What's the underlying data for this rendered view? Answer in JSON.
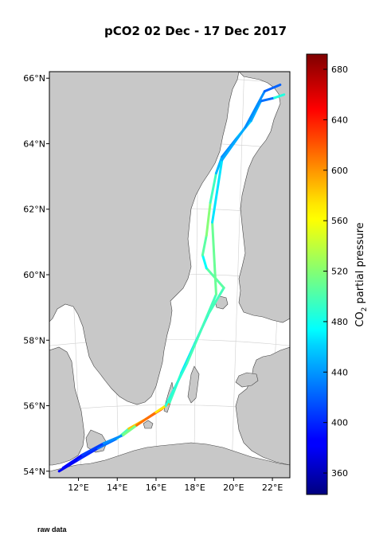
{
  "title": "pCO2 02 Dec - 17 Dec 2017",
  "footer_label": "raw data",
  "map": {
    "lon_range": [
      10.5,
      22.9
    ],
    "lat_range": [
      53.8,
      66.2
    ],
    "lat_ticks": [
      {
        "value": 54,
        "label": "54°N"
      },
      {
        "value": 56,
        "label": "56°N"
      },
      {
        "value": 58,
        "label": "58°N"
      },
      {
        "value": 60,
        "label": "60°N"
      },
      {
        "value": 62,
        "label": "62°N"
      },
      {
        "value": 64,
        "label": "64°N"
      },
      {
        "value": 66,
        "label": "66°N"
      }
    ],
    "lon_ticks": [
      {
        "value": 12,
        "label": "12°E"
      },
      {
        "value": 14,
        "label": "14°E"
      },
      {
        "value": 16,
        "label": "16°E"
      },
      {
        "value": 18,
        "label": "18°E"
      },
      {
        "value": 20,
        "label": "20°E"
      },
      {
        "value": 22,
        "label": "22°E"
      }
    ],
    "land_color": "#c8c8c8",
    "sea_color": "#ffffff",
    "track": [
      {
        "lon": 11.0,
        "lat": 54.0,
        "pco2": 375
      },
      {
        "lon": 12.0,
        "lat": 54.35,
        "pco2": 390
      },
      {
        "lon": 13.0,
        "lat": 54.7,
        "pco2": 410
      },
      {
        "lon": 14.0,
        "lat": 55.0,
        "pco2": 440
      },
      {
        "lon": 14.6,
        "lat": 55.3,
        "pco2": 560
      },
      {
        "lon": 15.5,
        "lat": 55.6,
        "pco2": 600
      },
      {
        "lon": 16.3,
        "lat": 55.9,
        "pco2": 670
      },
      {
        "lon": 16.7,
        "lat": 56.1,
        "pco2": 520
      },
      {
        "lon": 17.3,
        "lat": 57.0,
        "pco2": 470
      },
      {
        "lon": 18.0,
        "lat": 57.9,
        "pco2": 460
      },
      {
        "lon": 18.7,
        "lat": 58.8,
        "pco2": 455
      },
      {
        "lon": 19.5,
        "lat": 59.6,
        "pco2": 540
      },
      {
        "lon": 18.6,
        "lat": 60.2,
        "pco2": 470
      },
      {
        "lon": 18.4,
        "lat": 60.6,
        "pco2": 480
      },
      {
        "lon": 18.6,
        "lat": 61.2,
        "pco2": 530
      },
      {
        "lon": 18.8,
        "lat": 62.2,
        "pco2": 510
      },
      {
        "lon": 19.1,
        "lat": 63.1,
        "pco2": 480
      },
      {
        "lon": 19.4,
        "lat": 63.6,
        "pco2": 420
      },
      {
        "lon": 20.2,
        "lat": 64.2,
        "pco2": 450
      },
      {
        "lon": 20.9,
        "lat": 64.7,
        "pco2": 470
      },
      {
        "lon": 21.4,
        "lat": 65.3,
        "pco2": 420
      },
      {
        "lon": 22.1,
        "lat": 65.4,
        "pco2": 430
      },
      {
        "lon": 22.6,
        "lat": 65.5,
        "pco2": 540
      }
    ],
    "track2": [
      {
        "lon": 11.2,
        "lat": 54.1,
        "pco2": 380
      },
      {
        "lon": 12.2,
        "lat": 54.5,
        "pco2": 395
      },
      {
        "lon": 13.3,
        "lat": 54.85,
        "pco2": 420
      },
      {
        "lon": 14.3,
        "lat": 55.1,
        "pco2": 450
      },
      {
        "lon": 15.0,
        "lat": 55.4,
        "pco2": 580
      },
      {
        "lon": 16.0,
        "lat": 55.8,
        "pco2": 640
      },
      {
        "lon": 16.5,
        "lat": 56.0,
        "pco2": 500
      },
      {
        "lon": 17.6,
        "lat": 57.3,
        "pco2": 475
      },
      {
        "lon": 19.1,
        "lat": 59.4,
        "pco2": 520
      },
      {
        "lon": 18.9,
        "lat": 61.6,
        "pco2": 500
      },
      {
        "lon": 19.4,
        "lat": 63.5,
        "pco2": 430
      },
      {
        "lon": 20.6,
        "lat": 64.5,
        "pco2": 460
      },
      {
        "lon": 21.6,
        "lat": 65.6,
        "pco2": 410
      },
      {
        "lon": 22.4,
        "lat": 65.8,
        "pco2": 430
      }
    ]
  },
  "colorbar": {
    "label": "CO",
    "label_sub": "2",
    "label_rest": " partial pressure",
    "vmin": 343,
    "vmax": 692,
    "ticks": [
      360,
      400,
      440,
      480,
      520,
      560,
      600,
      640,
      680
    ],
    "tick_labels": [
      "360",
      "400",
      "440",
      "480",
      "520",
      "560",
      "600",
      "640",
      "680"
    ],
    "colormap": "jet"
  }
}
